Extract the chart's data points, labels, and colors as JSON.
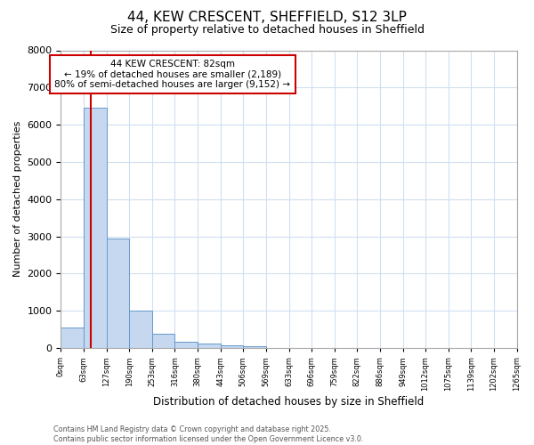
{
  "title1": "44, KEW CRESCENT, SHEFFIELD, S12 3LP",
  "title2": "Size of property relative to detached houses in Sheffield",
  "xlabel": "Distribution of detached houses by size in Sheffield",
  "ylabel": "Number of detached properties",
  "bar_edges": [
    0,
    63,
    127,
    190,
    253,
    316,
    380,
    443,
    506,
    569,
    633,
    696,
    759,
    822,
    886,
    949,
    1012,
    1075,
    1139,
    1202,
    1265
  ],
  "bar_values": [
    550,
    6450,
    2950,
    1000,
    370,
    170,
    110,
    65,
    50,
    0,
    0,
    0,
    0,
    0,
    0,
    0,
    0,
    0,
    0,
    0
  ],
  "bar_color": "#c5d8f0",
  "bar_edge_color": "#6699cc",
  "red_line_x": 82,
  "annotation_text": "44 KEW CRESCENT: 82sqm\n← 19% of detached houses are smaller (2,189)\n80% of semi-detached houses are larger (9,152) →",
  "annotation_box_color": "#ffffff",
  "annotation_box_edge_color": "#cc0000",
  "ylim": [
    0,
    8000
  ],
  "yticks": [
    0,
    1000,
    2000,
    3000,
    4000,
    5000,
    6000,
    7000,
    8000
  ],
  "xtick_labels": [
    "0sqm",
    "63sqm",
    "127sqm",
    "190sqm",
    "253sqm",
    "316sqm",
    "380sqm",
    "443sqm",
    "506sqm",
    "569sqm",
    "633sqm",
    "696sqm",
    "759sqm",
    "822sqm",
    "886sqm",
    "949sqm",
    "1012sqm",
    "1075sqm",
    "1139sqm",
    "1202sqm",
    "1265sqm"
  ],
  "footer_text": "Contains HM Land Registry data © Crown copyright and database right 2025.\nContains public sector information licensed under the Open Government Licence v3.0.",
  "background_color": "#ffffff",
  "grid_color": "#d0dff0",
  "fig_width": 6.0,
  "fig_height": 5.0
}
